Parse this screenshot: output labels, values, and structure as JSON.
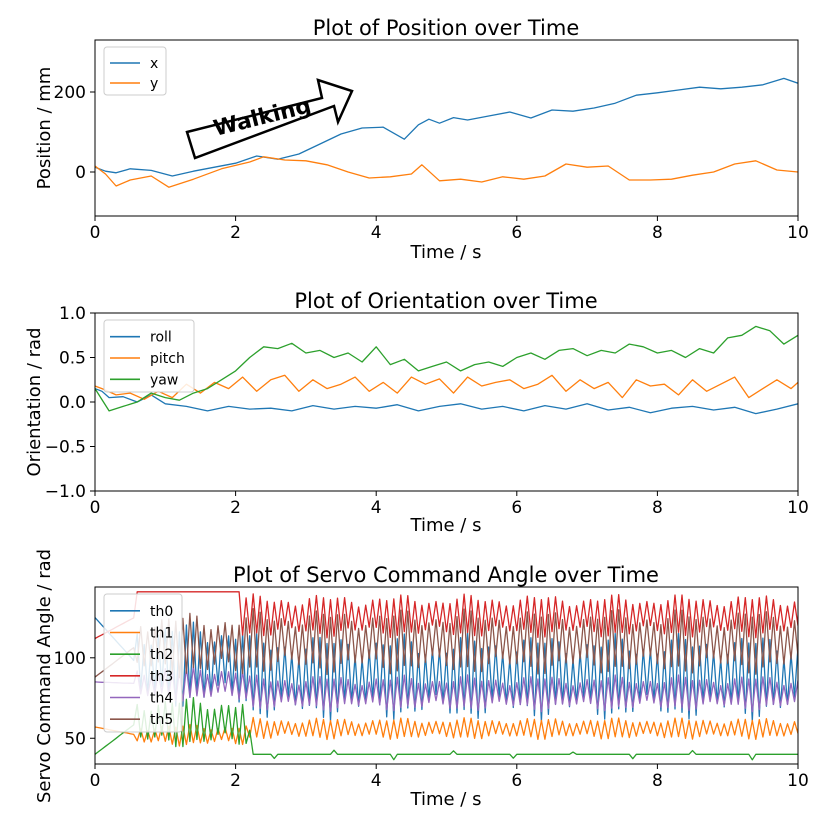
{
  "chart_data": [
    {
      "type": "line",
      "title": "Plot of Position over Time",
      "xlabel": "Time / s",
      "ylabel": "Position / mm",
      "xlim": [
        0,
        10
      ],
      "ylim": [
        -110,
        330
      ],
      "xticks": [
        0,
        2,
        4,
        6,
        8,
        10
      ],
      "yticks": [
        0,
        200
      ],
      "legend_position": "top-left",
      "annotation": "Walking",
      "series": [
        {
          "name": "x",
          "color": "#1f77b4",
          "x": [
            0,
            0.15,
            0.3,
            0.5,
            0.8,
            1.1,
            1.4,
            1.7,
            2.0,
            2.3,
            2.6,
            2.9,
            3.2,
            3.5,
            3.8,
            4.1,
            4.4,
            4.6,
            4.75,
            4.9,
            5.1,
            5.3,
            5.6,
            5.9,
            6.2,
            6.5,
            6.8,
            7.1,
            7.4,
            7.7,
            8.0,
            8.3,
            8.6,
            8.9,
            9.2,
            9.5,
            9.8,
            10
          ],
          "y": [
            12,
            2,
            -2,
            8,
            4,
            -10,
            2,
            12,
            22,
            40,
            32,
            45,
            70,
            95,
            110,
            112,
            82,
            118,
            132,
            122,
            136,
            130,
            140,
            150,
            135,
            155,
            152,
            160,
            172,
            192,
            198,
            205,
            212,
            208,
            212,
            218,
            234,
            222
          ]
        },
        {
          "name": "y",
          "color": "#ff7f0e",
          "x": [
            0,
            0.15,
            0.3,
            0.5,
            0.8,
            1.05,
            1.4,
            1.8,
            2.2,
            2.4,
            2.7,
            3.0,
            3.3,
            3.6,
            3.9,
            4.2,
            4.5,
            4.65,
            4.9,
            5.2,
            5.5,
            5.8,
            6.1,
            6.4,
            6.7,
            7.0,
            7.3,
            7.6,
            7.9,
            8.2,
            8.5,
            8.8,
            9.1,
            9.4,
            9.7,
            10
          ],
          "y": [
            15,
            -5,
            -35,
            -20,
            -10,
            -38,
            -18,
            8,
            25,
            38,
            30,
            28,
            18,
            0,
            -15,
            -12,
            -5,
            18,
            -22,
            -18,
            -25,
            -12,
            -18,
            -10,
            20,
            12,
            15,
            -20,
            -20,
            -18,
            -8,
            0,
            20,
            28,
            5,
            0
          ]
        }
      ]
    },
    {
      "type": "line",
      "title": "Plot of Orientation over Time",
      "xlabel": "Time / s",
      "ylabel": "Orientation / rad",
      "xlim": [
        0,
        10
      ],
      "ylim": [
        -1.0,
        1.0
      ],
      "xticks": [
        0,
        2,
        4,
        6,
        8,
        10
      ],
      "yticks": [
        -1.0,
        -0.5,
        0.0,
        0.5,
        1.0
      ],
      "legend_position": "top-left",
      "series": [
        {
          "name": "roll",
          "color": "#1f77b4",
          "x": [
            0,
            0.1,
            0.2,
            0.4,
            0.6,
            0.8,
            1.0,
            1.3,
            1.6,
            1.9,
            2.2,
            2.5,
            2.8,
            3.1,
            3.4,
            3.7,
            4.0,
            4.3,
            4.6,
            4.9,
            5.2,
            5.5,
            5.8,
            6.1,
            6.4,
            6.7,
            7.0,
            7.3,
            7.6,
            7.9,
            8.2,
            8.5,
            8.8,
            9.1,
            9.4,
            9.7,
            10
          ],
          "y": [
            0.15,
            0.12,
            0.05,
            0.06,
            0.0,
            0.08,
            -0.02,
            -0.05,
            -0.1,
            -0.05,
            -0.08,
            -0.07,
            -0.1,
            -0.04,
            -0.08,
            -0.05,
            -0.07,
            -0.03,
            -0.1,
            -0.05,
            -0.02,
            -0.08,
            -0.05,
            -0.1,
            -0.04,
            -0.08,
            -0.02,
            -0.09,
            -0.06,
            -0.12,
            -0.07,
            -0.05,
            -0.09,
            -0.06,
            -0.13,
            -0.08,
            -0.02
          ]
        },
        {
          "name": "pitch",
          "color": "#ff7f0e",
          "x": [
            0,
            0.1,
            0.3,
            0.5,
            0.7,
            0.9,
            1.1,
            1.3,
            1.5,
            1.7,
            1.9,
            2.1,
            2.3,
            2.5,
            2.7,
            2.9,
            3.1,
            3.3,
            3.5,
            3.7,
            3.9,
            4.1,
            4.3,
            4.5,
            4.7,
            4.9,
            5.1,
            5.3,
            5.5,
            5.7,
            5.9,
            6.1,
            6.3,
            6.5,
            6.7,
            6.9,
            7.1,
            7.3,
            7.5,
            7.7,
            7.9,
            8.1,
            8.3,
            8.5,
            8.7,
            8.9,
            9.1,
            9.3,
            9.5,
            9.7,
            9.9,
            10
          ],
          "y": [
            0.18,
            0.15,
            0.08,
            0.1,
            0.03,
            0.12,
            0.05,
            0.2,
            0.1,
            0.22,
            0.15,
            0.28,
            0.12,
            0.25,
            0.3,
            0.12,
            0.25,
            0.15,
            0.2,
            0.28,
            0.12,
            0.22,
            0.1,
            0.28,
            0.2,
            0.26,
            0.1,
            0.28,
            0.18,
            0.22,
            0.25,
            0.15,
            0.2,
            0.3,
            0.12,
            0.25,
            0.15,
            0.22,
            0.05,
            0.25,
            0.18,
            0.2,
            0.08,
            0.25,
            0.12,
            0.2,
            0.28,
            0.05,
            0.15,
            0.25,
            0.15,
            0.22
          ]
        },
        {
          "name": "yaw",
          "color": "#2ca02c",
          "x": [
            0,
            0.2,
            0.4,
            0.6,
            0.8,
            1.0,
            1.2,
            1.4,
            1.6,
            1.8,
            2.0,
            2.2,
            2.4,
            2.6,
            2.8,
            3.0,
            3.2,
            3.4,
            3.6,
            3.8,
            4.0,
            4.2,
            4.4,
            4.6,
            4.8,
            5.0,
            5.2,
            5.4,
            5.6,
            5.8,
            6.0,
            6.2,
            6.4,
            6.6,
            6.8,
            7.0,
            7.2,
            7.4,
            7.6,
            7.8,
            8.0,
            8.2,
            8.4,
            8.6,
            8.8,
            9.0,
            9.2,
            9.4,
            9.6,
            9.8,
            10
          ],
          "y": [
            0.15,
            -0.1,
            -0.05,
            0.0,
            0.1,
            0.05,
            0.02,
            0.1,
            0.15,
            0.25,
            0.35,
            0.5,
            0.62,
            0.6,
            0.66,
            0.55,
            0.58,
            0.5,
            0.55,
            0.45,
            0.62,
            0.42,
            0.48,
            0.35,
            0.4,
            0.45,
            0.35,
            0.42,
            0.45,
            0.4,
            0.5,
            0.55,
            0.48,
            0.58,
            0.6,
            0.52,
            0.58,
            0.55,
            0.65,
            0.62,
            0.55,
            0.58,
            0.5,
            0.6,
            0.55,
            0.72,
            0.75,
            0.85,
            0.8,
            0.65,
            0.75
          ]
        }
      ]
    },
    {
      "type": "line",
      "title": "Plot of Servo Command Angle over Time",
      "xlabel": "Time / s",
      "ylabel": "Servo Command Angle / rad",
      "xlim": [
        0,
        10
      ],
      "ylim": [
        34,
        144
      ],
      "xticks": [
        0,
        2,
        4,
        6,
        8,
        10
      ],
      "yticks": [
        50,
        100
      ],
      "legend_position": "top-left",
      "series": [
        {
          "name": "th0",
          "color": "#1f77b4",
          "start": 125,
          "amp": 24,
          "center": 96,
          "center_late": 88
        },
        {
          "name": "th1",
          "color": "#ff7f0e",
          "start": 57,
          "amp": 6,
          "center": 52,
          "center_late": 56
        },
        {
          "name": "th2",
          "color": "#2ca02c",
          "start": 40,
          "amp": 14,
          "center": 60,
          "center_late": 40
        },
        {
          "name": "th3",
          "color": "#d62728",
          "start": 112,
          "amp": 12,
          "center": 126,
          "center_late": 126
        },
        {
          "name": "th4",
          "color": "#9467bd",
          "start": 85,
          "amp": 10,
          "center": 84,
          "center_late": 78
        },
        {
          "name": "th5",
          "color": "#8c564b",
          "start": 88,
          "amp": 18,
          "center": 108,
          "center_late": 110
        }
      ]
    }
  ]
}
